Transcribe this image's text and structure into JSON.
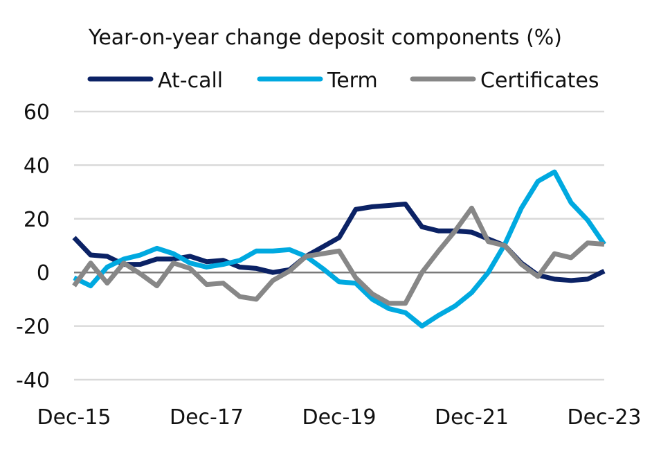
{
  "chart_data": {
    "type": "line",
    "title": "Year-on-year change deposit components (%)",
    "xlabel": "",
    "ylabel": "",
    "ylim": [
      -40,
      60
    ],
    "yticks": [
      60,
      40,
      20,
      0,
      -20,
      -40
    ],
    "xtick_labels": [
      "Dec-15",
      "Dec-17",
      "Dec-19",
      "Dec-21",
      "Dec-23"
    ],
    "grid": true,
    "legend_position": "top",
    "frequency": "quarterly",
    "series": [
      {
        "name": "At-call",
        "color": "#0b2265",
        "values": [
          13,
          6.5,
          6,
          3,
          3,
          5,
          5,
          6,
          4,
          4.5,
          2,
          1.5,
          0,
          1,
          6,
          9.5,
          13,
          23.5,
          24.5,
          25,
          25.5,
          17,
          15.5,
          15.5,
          15,
          12.5,
          10,
          3.5,
          -1,
          -2.5,
          -3,
          -2.5,
          0.5
        ]
      },
      {
        "name": "Term",
        "color": "#00a9e0",
        "values": [
          -2,
          -5,
          2,
          5,
          6.5,
          9,
          7,
          3.5,
          2,
          3,
          4.5,
          8,
          8,
          8.5,
          6,
          1.5,
          -3.5,
          -4,
          -10,
          -13.5,
          -15,
          -20,
          -16,
          -12.5,
          -7.5,
          0,
          10.5,
          24,
          34,
          37.5,
          26,
          19.5,
          10.5
        ]
      },
      {
        "name": "Certificates",
        "color": "#878787",
        "values": [
          -5,
          3.5,
          -4,
          3.5,
          -0.5,
          -5,
          3.5,
          1.5,
          -4.5,
          -4,
          -9,
          -10,
          -3,
          0.5,
          6,
          7,
          8,
          -2,
          -8,
          -11.5,
          -11.5,
          0,
          8,
          15.5,
          24,
          11.5,
          10,
          3,
          -1.5,
          7,
          5.5,
          11,
          10.5
        ]
      }
    ]
  }
}
